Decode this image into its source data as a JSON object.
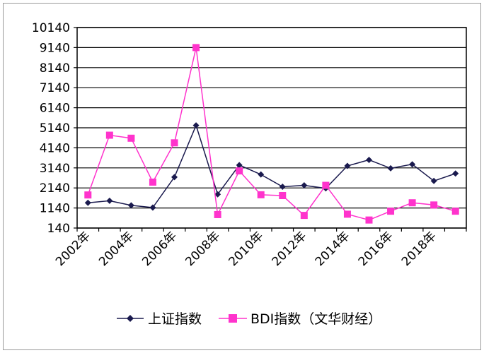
{
  "chart_data": {
    "type": "line",
    "title": "",
    "xlabel": "",
    "ylabel": "",
    "x": [
      2002,
      2003,
      2004,
      2005,
      2006,
      2007,
      2008,
      2009,
      2010,
      2011,
      2012,
      2013,
      2014,
      2015,
      2016,
      2017,
      2018,
      2019
    ],
    "x_tick_labels": [
      "2002年",
      "2004年",
      "2006年",
      "2008年",
      "2010年",
      "2012年",
      "2014年",
      "2016年",
      "2018年"
    ],
    "y_ticks": [
      140,
      1140,
      2140,
      3140,
      4140,
      5140,
      6140,
      7140,
      8140,
      9140,
      10140
    ],
    "ylim": [
      140,
      10140
    ],
    "grid": "horizontal",
    "legend_position": "bottom",
    "series": [
      {
        "name": "上证指数",
        "color": "#1a1a4e",
        "marker": "diamond",
        "values": [
          1400,
          1500,
          1270,
          1160,
          2680,
          5260,
          1820,
          3280,
          2810,
          2200,
          2270,
          2120,
          3240,
          3540,
          3120,
          3320,
          2490,
          2860
        ]
      },
      {
        "name": "BDI指数（文华财经）",
        "color": "#ff33cc",
        "marker": "square",
        "values": [
          1790,
          4770,
          4620,
          2430,
          4390,
          9140,
          810,
          2990,
          1800,
          1760,
          770,
          2270,
          830,
          540,
          980,
          1400,
          1290,
          980
        ]
      }
    ]
  }
}
